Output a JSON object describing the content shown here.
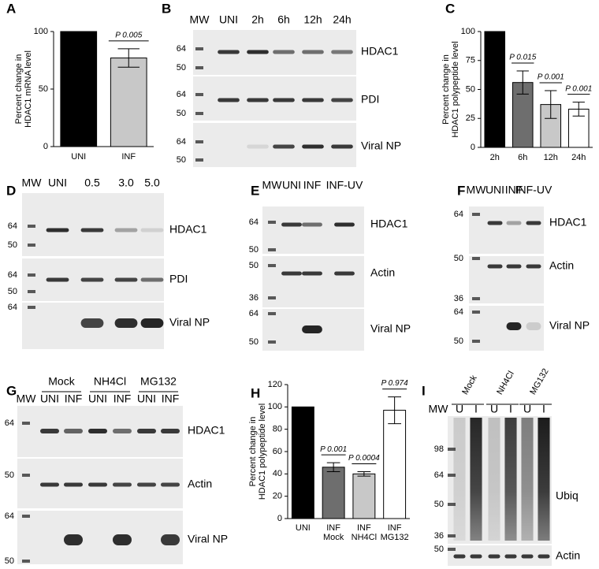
{
  "chart_data": [
    {
      "type": "bar",
      "panel": "A",
      "ylabel": [
        "Percent change in",
        "HDAC1 mRNA level"
      ],
      "categories": [
        "UNI",
        "INF"
      ],
      "values": [
        100,
        77
      ],
      "errors": [
        null,
        8
      ],
      "colors": [
        "#000000",
        "#c8c8c8"
      ],
      "ylim": [
        0,
        100
      ],
      "yticks": [
        0,
        50,
        100
      ],
      "annotations": [
        "P 0.005"
      ]
    },
    {
      "type": "bar",
      "panel": "C",
      "ylabel": [
        "Percent change in",
        "HDAC1 polypeptide level"
      ],
      "categories": [
        "2h",
        "6h",
        "12h",
        "24h"
      ],
      "values": [
        100,
        56,
        37,
        33
      ],
      "errors": [
        null,
        10,
        12,
        6
      ],
      "colors": [
        "#000000",
        "#6e6e6e",
        "#c8c8c8",
        "#ffffff"
      ],
      "ylim": [
        0,
        100
      ],
      "yticks": [
        0,
        25,
        50,
        75,
        100
      ],
      "annotations": [
        "P 0.015",
        "P 0.001",
        "P 0.001"
      ]
    },
    {
      "type": "bar",
      "panel": "H",
      "ylabel": [
        "Percent change in",
        "HDAC1 polypeptide level"
      ],
      "categories": [
        [
          "UNI"
        ],
        [
          "INF",
          "Mock"
        ],
        [
          "INF",
          "NH4Cl"
        ],
        [
          "INF",
          "MG132"
        ]
      ],
      "values": [
        100,
        46,
        40,
        97
      ],
      "errors": [
        null,
        4,
        2,
        12
      ],
      "colors": [
        "#000000",
        "#6e6e6e",
        "#c8c8c8",
        "#ffffff"
      ],
      "ylim": [
        0,
        120
      ],
      "yticks": [
        0,
        20,
        40,
        60,
        80,
        100,
        120
      ],
      "annotations": [
        "P 0.001",
        "P 0.0004",
        "P 0.974"
      ]
    }
  ],
  "blots": [
    {
      "panel": "B",
      "lanes": [
        "MW",
        "UNI",
        "2h",
        "6h",
        "12h",
        "24h"
      ],
      "strips": [
        {
          "label": "HDAC1",
          "markers": [
            "64",
            "50"
          ]
        },
        {
          "label": "PDI",
          "markers": [
            "64",
            "50"
          ]
        },
        {
          "label": "Viral NP",
          "markers": [
            "64",
            "50"
          ]
        }
      ]
    },
    {
      "panel": "D",
      "lanes": [
        "MW",
        "UNI",
        "0.5",
        "3.0",
        "5.0"
      ],
      "strips": [
        {
          "label": "HDAC1",
          "markers": [
            "64",
            "50"
          ]
        },
        {
          "label": "PDI",
          "markers": [
            "64",
            "50"
          ]
        },
        {
          "label": "Viral NP",
          "markers": [
            "64"
          ]
        }
      ]
    },
    {
      "panel": "E",
      "lanes": [
        "MW",
        "UNI",
        "INF",
        "INF-UV"
      ],
      "strips": [
        {
          "label": "HDAC1",
          "markers": [
            "64",
            "50"
          ]
        },
        {
          "label": "Actin",
          "markers": [
            "50",
            "36"
          ]
        },
        {
          "label": "Viral NP",
          "markers": [
            "64",
            "50"
          ]
        }
      ]
    },
    {
      "panel": "F",
      "lanes": [
        "MW",
        "UNI",
        "INF",
        "INF-UV"
      ],
      "strips": [
        {
          "label": "HDAC1",
          "markers": [
            "64"
          ]
        },
        {
          "label": "Actin",
          "markers": [
            "50",
            "36"
          ]
        },
        {
          "label": "Viral NP",
          "markers": [
            "64",
            "50"
          ]
        }
      ]
    },
    {
      "panel": "G",
      "groups": [
        "Mock",
        "NH4Cl",
        "MG132"
      ],
      "lanes": [
        "MW",
        "UNI",
        "INF",
        "UNI",
        "INF",
        "UNI",
        "INF"
      ],
      "strips": [
        {
          "label": "HDAC1",
          "markers": [
            "64"
          ]
        },
        {
          "label": "Actin",
          "markers": [
            "50"
          ]
        },
        {
          "label": "Viral NP",
          "markers": [
            "64",
            "50"
          ]
        }
      ]
    },
    {
      "panel": "I",
      "groups": [
        "Mock",
        "NH4Cl",
        "MG132"
      ],
      "lanes": [
        "MW",
        "U",
        "I",
        "U",
        "I",
        "U",
        "I"
      ],
      "strips": [
        {
          "label": "Ubiq",
          "markers": [
            "98",
            "64",
            "50",
            "36"
          ]
        },
        {
          "label": "Actin",
          "markers": [
            "50"
          ]
        }
      ]
    }
  ]
}
